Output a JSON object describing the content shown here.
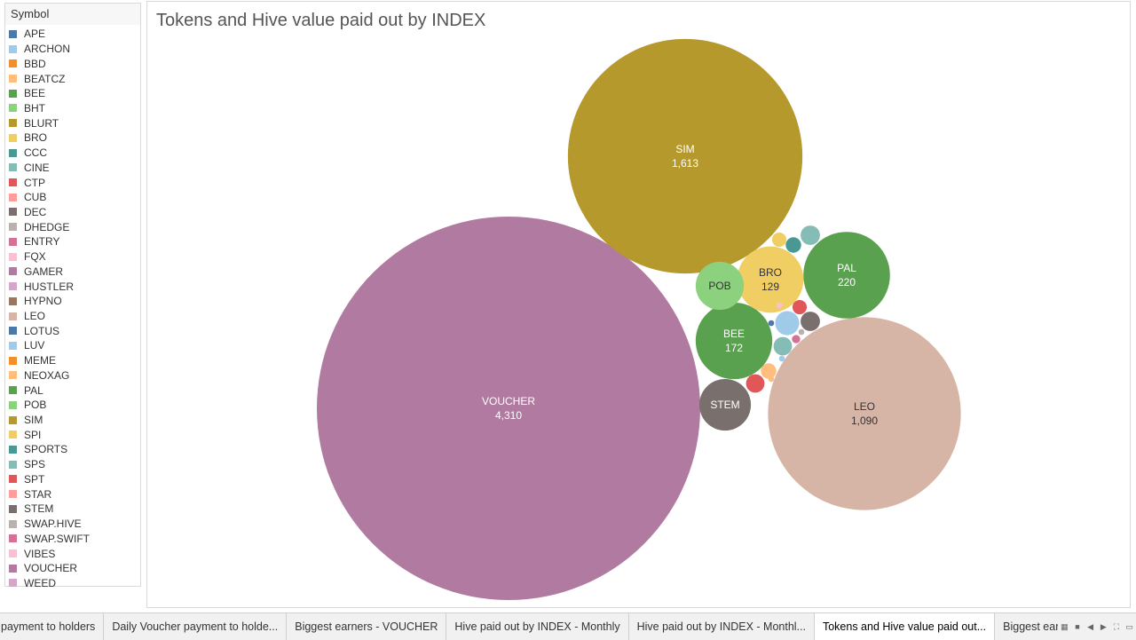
{
  "legend": {
    "title": "Symbol",
    "items": [
      {
        "label": "APE",
        "color": "#4e79a7"
      },
      {
        "label": "ARCHON",
        "color": "#a0cbe8"
      },
      {
        "label": "BBD",
        "color": "#f28e2b"
      },
      {
        "label": "BEATCZ",
        "color": "#ffbe7d"
      },
      {
        "label": "BEE",
        "color": "#59a14f"
      },
      {
        "label": "BHT",
        "color": "#8cd17d"
      },
      {
        "label": "BLURT",
        "color": "#b6992d"
      },
      {
        "label": "BRO",
        "color": "#f1ce63"
      },
      {
        "label": "CCC",
        "color": "#499894"
      },
      {
        "label": "CINE",
        "color": "#86bcb6"
      },
      {
        "label": "CTP",
        "color": "#e15759"
      },
      {
        "label": "CUB",
        "color": "#ff9d9a"
      },
      {
        "label": "DEC",
        "color": "#79706e"
      },
      {
        "label": "DHEDGE",
        "color": "#bab0ac"
      },
      {
        "label": "ENTRY",
        "color": "#d37295"
      },
      {
        "label": "FQX",
        "color": "#fabfd2"
      },
      {
        "label": "GAMER",
        "color": "#b07aa1"
      },
      {
        "label": "HUSTLER",
        "color": "#d4a6c8"
      },
      {
        "label": "HYPNO",
        "color": "#9d7660"
      },
      {
        "label": "LEO",
        "color": "#d7b5a6"
      },
      {
        "label": "LOTUS",
        "color": "#4e79a7"
      },
      {
        "label": "LUV",
        "color": "#a0cbe8"
      },
      {
        "label": "MEME",
        "color": "#f28e2b"
      },
      {
        "label": "NEOXAG",
        "color": "#ffbe7d"
      },
      {
        "label": "PAL",
        "color": "#59a14f"
      },
      {
        "label": "POB",
        "color": "#8cd17d"
      },
      {
        "label": "SIM",
        "color": "#b6992d"
      },
      {
        "label": "SPI",
        "color": "#f1ce63"
      },
      {
        "label": "SPORTS",
        "color": "#499894"
      },
      {
        "label": "SPS",
        "color": "#86bcb6"
      },
      {
        "label": "SPT",
        "color": "#e15759"
      },
      {
        "label": "STAR",
        "color": "#ff9d9a"
      },
      {
        "label": "STEM",
        "color": "#79706e"
      },
      {
        "label": "SWAP.HIVE",
        "color": "#bab0ac"
      },
      {
        "label": "SWAP.SWIFT",
        "color": "#d37295"
      },
      {
        "label": "VIBES",
        "color": "#fabfd2"
      },
      {
        "label": "VOUCHER",
        "color": "#b07aa1"
      },
      {
        "label": "WEED",
        "color": "#d4a6c8"
      }
    ]
  },
  "chart": {
    "title": "Tokens and Hive value paid out by INDEX"
  },
  "chart_data": {
    "type": "bubble",
    "title": "Tokens and Hive value paid out by INDEX",
    "legend_title": "Symbol",
    "legend_position": "left",
    "labeled_bubbles": [
      {
        "symbol": "VOUCHER",
        "value": 4310,
        "value_label": "4,310",
        "color": "#b07aa1"
      },
      {
        "symbol": "SIM",
        "value": 1613,
        "value_label": "1,613",
        "color": "#b6992d"
      },
      {
        "symbol": "LEO",
        "value": 1090,
        "value_label": "1,090",
        "color": "#d7b5a6"
      },
      {
        "symbol": "PAL",
        "value": 220,
        "value_label": "220",
        "color": "#59a14f"
      },
      {
        "symbol": "BEE",
        "value": 172,
        "value_label": "172",
        "color": "#59a14f"
      },
      {
        "symbol": "BRO",
        "value": 129,
        "value_label": "129",
        "color": "#f1ce63"
      },
      {
        "symbol": "STEM",
        "value": 78,
        "value_label": "",
        "color": "#79706e"
      },
      {
        "symbol": "POB",
        "value": 68,
        "value_label": "",
        "color": "#8cd17d"
      }
    ],
    "small_bubbles": [
      {
        "symbol": "CINE",
        "value": 11,
        "color": "#86bcb6"
      },
      {
        "symbol": "SPI",
        "value": 6,
        "color": "#f1ce63"
      },
      {
        "symbol": "SPORTS",
        "value": 7,
        "color": "#499894"
      },
      {
        "symbol": "DEC",
        "value": 11,
        "color": "#79706e"
      },
      {
        "symbol": "CTP",
        "value": 6,
        "color": "#e15759"
      },
      {
        "symbol": "ARCHON",
        "value": 17,
        "color": "#a0cbe8"
      },
      {
        "symbol": "SPS",
        "value": 10,
        "color": "#86bcb6"
      },
      {
        "symbol": "SPT",
        "value": 10,
        "color": "#e15759"
      },
      {
        "symbol": "BEATCZ",
        "value": 7,
        "color": "#ffbe7d"
      },
      {
        "symbol": "ENTRY",
        "value": 2,
        "color": "#d37295"
      },
      {
        "symbol": "APE",
        "value": 1,
        "color": "#4e79a7"
      },
      {
        "symbol": "DHEDGE",
        "value": 1,
        "color": "#bab0ac"
      },
      {
        "symbol": "LUV",
        "value": 1,
        "color": "#a0cbe8"
      },
      {
        "symbol": "NEOXAG",
        "value": 1,
        "color": "#ffbe7d"
      },
      {
        "symbol": "FQX",
        "value": 1,
        "color": "#fabfd2"
      }
    ]
  },
  "tabs": [
    {
      "label": "payment to holders",
      "active": false
    },
    {
      "label": "Daily Voucher payment to holde...",
      "active": false
    },
    {
      "label": "Biggest earners - VOUCHER",
      "active": false
    },
    {
      "label": "Hive paid out by INDEX - Monthly",
      "active": false
    },
    {
      "label": "Hive paid out by INDEX - Monthl...",
      "active": false
    },
    {
      "label": "Tokens and Hive value paid out...",
      "active": true
    },
    {
      "label": "Biggest earners -",
      "active": false
    }
  ],
  "tab_controls": [
    {
      "name": "grid-view-icon",
      "glyph": "▦"
    },
    {
      "name": "filmstrip-view-icon",
      "glyph": "■"
    },
    {
      "name": "previous-sheet-icon",
      "glyph": "◀"
    },
    {
      "name": "next-sheet-icon",
      "glyph": "▶"
    },
    {
      "name": "fullscreen-icon",
      "glyph": "⛶"
    },
    {
      "name": "restore-icon",
      "glyph": "▭"
    }
  ]
}
